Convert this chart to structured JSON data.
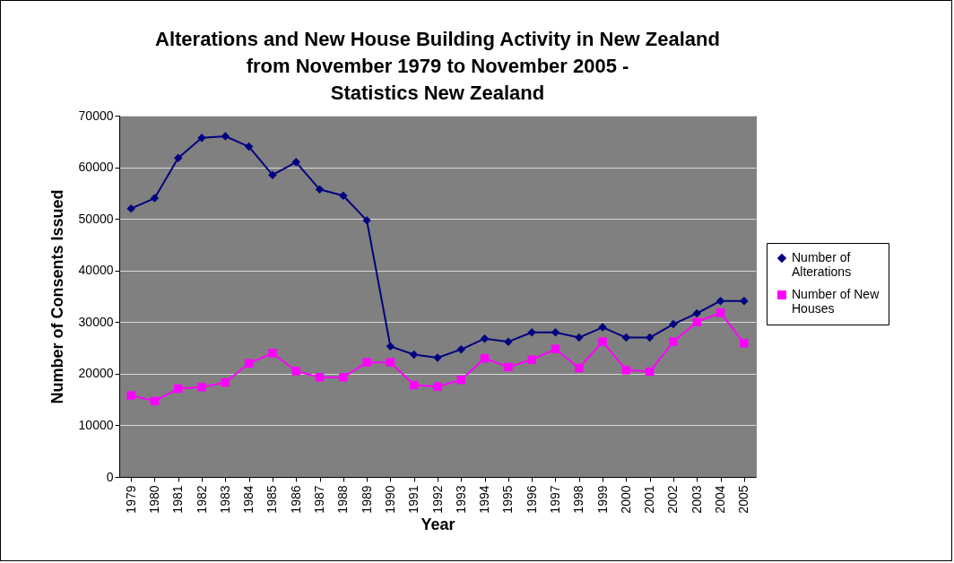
{
  "chart_data": {
    "type": "line",
    "title": "Alterations and New House Building Activity in New Zealand from November 1979 to November 2005 - Statistics New Zealand",
    "xlabel": "Year",
    "ylabel": "Number of Consents Issued",
    "categories": [
      "1979",
      "1980",
      "1981",
      "1982",
      "1983",
      "1984",
      "1985",
      "1986",
      "1987",
      "1988",
      "1989",
      "1990",
      "1991",
      "1992",
      "1993",
      "1994",
      "1995",
      "1996",
      "1997",
      "1998",
      "1999",
      "2000",
      "2001",
      "2002",
      "2003",
      "2004",
      "2005"
    ],
    "series": [
      {
        "name": "Number of Alterations",
        "color": "#000080",
        "marker": "diamond",
        "values": [
          52000,
          54000,
          61800,
          65700,
          66000,
          64000,
          58500,
          61000,
          55700,
          54500,
          49700,
          25300,
          23700,
          23100,
          24700,
          26800,
          26200,
          28000,
          28000,
          27000,
          29000,
          27000,
          27000,
          29600,
          31700,
          34100,
          34100
        ]
      },
      {
        "name": "Number of New Houses",
        "color": "#ff00ff",
        "marker": "square",
        "values": [
          15800,
          14700,
          17100,
          17400,
          18300,
          22000,
          24000,
          20500,
          19300,
          19300,
          22200,
          22200,
          17800,
          17500,
          18800,
          23000,
          21300,
          22700,
          24800,
          21100,
          26200,
          20700,
          20400,
          26200,
          30000,
          31800,
          25900
        ]
      }
    ],
    "ylim": [
      0,
      70000
    ],
    "yticks": [
      0,
      10000,
      20000,
      30000,
      40000,
      50000,
      60000,
      70000
    ],
    "grid": "y",
    "legend": "right",
    "line_style": "solid"
  }
}
